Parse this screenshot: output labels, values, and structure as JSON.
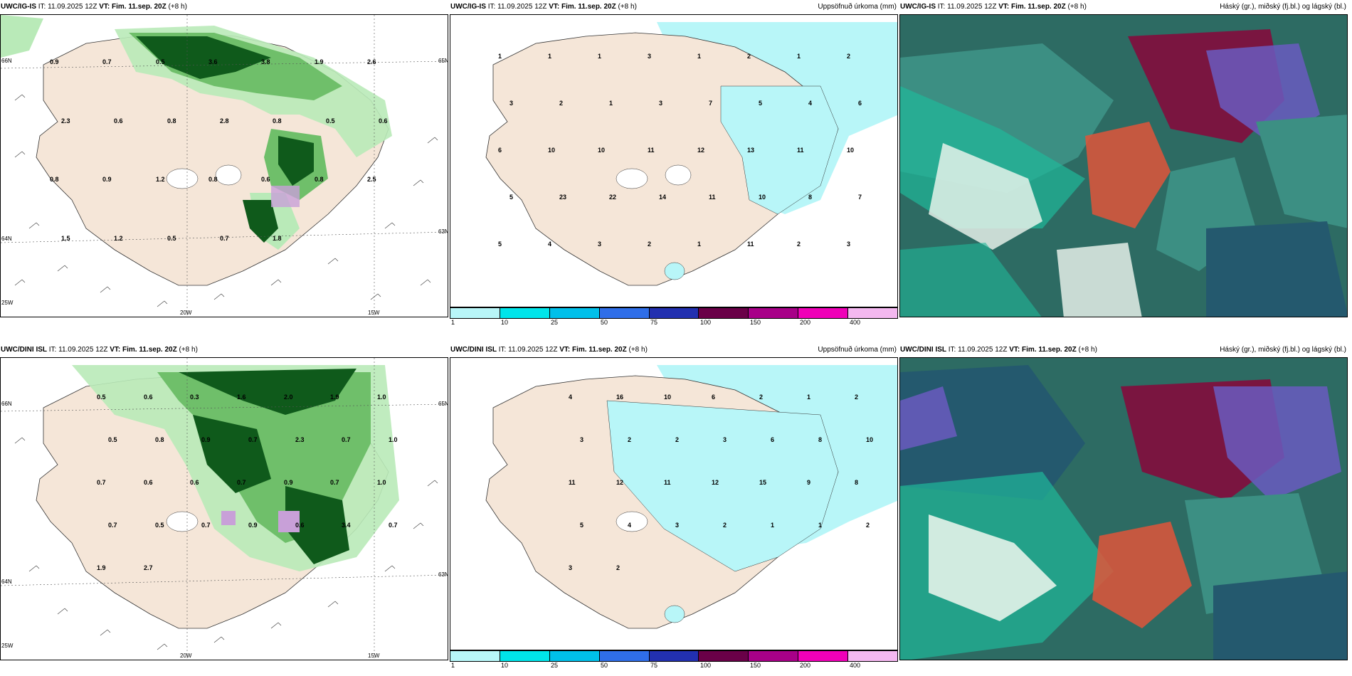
{
  "panels": {
    "top_left": {
      "model": "UWC/IG-IS",
      "it_label": "IT:",
      "it": "11.09.2025 12Z",
      "vt_label": "VT:",
      "vt": "Fim. 11.sep. 20Z",
      "lead": "(+8",
      "lead2": "h)",
      "right": ""
    },
    "top_mid": {
      "model": "UWC/IG-IS",
      "it_label": "IT:",
      "it": "11.09.2025 12Z",
      "vt_label": "VT:",
      "vt": "Fim. 11.sep. 20Z",
      "lead": "(+8 h)",
      "right": "Uppsöfnuð úrkoma (mm)"
    },
    "top_right": {
      "model": "UWC/IG-IS",
      "it_label": "IT:",
      "it": "11.09.2025 12Z",
      "vt_label": "VT:",
      "vt": "Fim. 11.sep. 20Z",
      "lead": "(+8 h)",
      "right": "Háský (gr.), miðský (fj.bl.) og lágský (bl.)"
    },
    "bot_left": {
      "model": "UWC/DINI ISL",
      "it_label": "IT:",
      "it": "11.09.2025 12Z",
      "vt_label": "VT:",
      "vt": "Fim. 11.sep. 20Z",
      "lead": "(+8 h)",
      "right": ""
    },
    "bot_mid": {
      "model": "UWC/DINI ISL",
      "it_label": "IT:",
      "it": "11.09.2025 12Z",
      "vt_label": "VT:",
      "vt": "Fim. 11.sep. 20Z",
      "lead": "(+8 h)",
      "right": "Uppsöfnuð úrkoma (mm)"
    },
    "bot_right": {
      "model": "UWC/DINI ISL",
      "it_label": "IT:",
      "it": "11.09.2025 12Z",
      "vt_label": "VT:",
      "vt": "Fim. 11.sep. 20Z",
      "lead": "(+8 h)",
      "right": "Háský (gr.), miðský (fj.bl.) og lágský (bl.)"
    }
  },
  "axes": {
    "lat_66": "66N",
    "lat_64": "64N",
    "lat_65": "65N",
    "lat_63": "63N",
    "lon_25": "25W",
    "lon_20": "20W",
    "lon_15": "15W"
  },
  "colorbar": {
    "ticks": [
      "1",
      "10",
      "25",
      "50",
      "75",
      "100",
      "150",
      "200",
      "400"
    ],
    "colors": [
      "#b8f6f8",
      "#00e5ea",
      "#00c0ea",
      "#2f6ee8",
      "#2230b0",
      "#6a0048",
      "#a80088",
      "#f000b8",
      "#f4b8f0"
    ]
  },
  "precip_top_values": [
    "1",
    "1",
    "1",
    "3",
    "1",
    "2",
    "1",
    "2",
    "3",
    "2",
    "1",
    "3",
    "7",
    "5",
    "4",
    "6",
    "6",
    "10",
    "10",
    "11",
    "12",
    "13",
    "11",
    "10",
    "5",
    "23",
    "22",
    "14",
    "11",
    "10",
    "8",
    "7",
    "5",
    "4",
    "3",
    "2",
    "1",
    "11",
    "2",
    "3"
  ],
  "precip_bot_values": [
    "4",
    "16",
    "10",
    "6",
    "2",
    "1",
    "2",
    "3",
    "2",
    "2",
    "3",
    "6",
    "8",
    "10",
    "11",
    "12",
    "11",
    "12",
    "15",
    "9",
    "8",
    "5",
    "4",
    "3",
    "2",
    "1",
    "1",
    "2",
    "3",
    "2"
  ],
  "shade_top_values": [
    "0.9",
    "0.7",
    "0.5",
    "3.6",
    "3.8",
    "1.9",
    "2.6",
    "2.3",
    "0.6",
    "0.8",
    "2.8",
    "0.8",
    "0.5",
    "0.6",
    "0.8",
    "0.9",
    "1.2",
    "0.8",
    "0.6",
    "0.8",
    "2.5",
    "1.5",
    "1.2",
    "0.5",
    "0.7",
    "1.8"
  ],
  "shade_bot_values": [
    "0.5",
    "0.6",
    "0.3",
    "1.6",
    "2.0",
    "1.9",
    "1.0",
    "0.5",
    "0.8",
    "0.9",
    "0.7",
    "2.3",
    "0.7",
    "1.0",
    "0.7",
    "0.6",
    "0.6",
    "0.7",
    "0.9",
    "0.7",
    "1.0",
    "0.7",
    "0.5",
    "0.7",
    "0.9",
    "0.6",
    "3.4",
    "0.7",
    "1.9",
    "2.7"
  ],
  "colors": {
    "land": "#f5e6d8",
    "sea": "#ffffff",
    "greenLight": "#b9eab8",
    "greenMid": "#6fbf6a",
    "greenDark": "#0f5a1b",
    "cyanSea": "#b8f6f8",
    "cloudDark": "#2d6b63",
    "cloudMid": "#3c8f83",
    "cloudTeal": "#1fb89a",
    "purple": "#6a5bc0",
    "maroon": "#7a1540",
    "red": "#e0553a"
  }
}
